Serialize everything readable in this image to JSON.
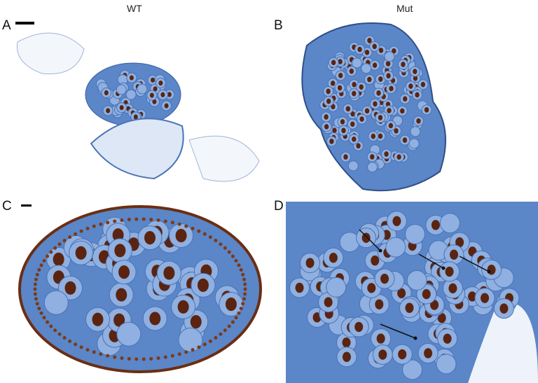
{
  "columns": {
    "left": "WT",
    "right": "Mut"
  },
  "panels": [
    {
      "label": "A",
      "genotype": "WT",
      "scale_bar": true
    },
    {
      "label": "B",
      "genotype": "Mut",
      "scale_bar": false
    },
    {
      "label": "C",
      "genotype": "WT",
      "scale_bar": true
    },
    {
      "label": "D",
      "genotype": "Mut",
      "scale_bar": false
    }
  ],
  "colors": {
    "tissue_blue": "#5b86c8",
    "stain_brown": "#5a2410",
    "background": "#ffffff"
  }
}
